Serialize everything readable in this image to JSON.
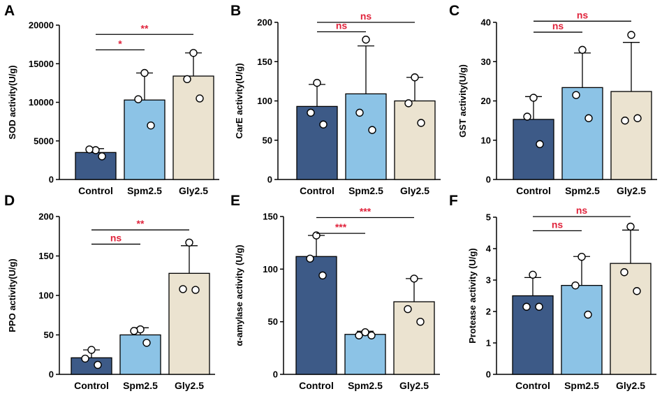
{
  "colors": {
    "bars": [
      "#3d5a87",
      "#8cc3e6",
      "#ebe3d0"
    ],
    "axis": "#000000",
    "significance": "#e0243c"
  },
  "chart_data": [
    {
      "panel": "A",
      "type": "bar",
      "categories": [
        "Control",
        "Spm2.5",
        "Gly2.5"
      ],
      "ylabel": "SOD activity(U/g)",
      "ylim": [
        0,
        20000
      ],
      "yticks": [
        0,
        5000,
        10000,
        15000,
        20000
      ],
      "values": [
        3500,
        10300,
        13400
      ],
      "sd": [
        500,
        3500,
        3000
      ],
      "points": [
        [
          3800,
          3900,
          3000
        ],
        [
          13800,
          10400,
          7000
        ],
        [
          16400,
          13000,
          10500
        ]
      ],
      "significance": [
        {
          "from": "Control",
          "to": "Spm2.5",
          "label": "*",
          "y": 16800
        },
        {
          "from": "Control",
          "to": "Gly2.5",
          "label": "**",
          "y": 18800
        }
      ]
    },
    {
      "panel": "B",
      "type": "bar",
      "categories": [
        "Control",
        "Spm2.5",
        "Gly2.5"
      ],
      "ylabel": "CarE activity(U/g)",
      "ylim": [
        0,
        200
      ],
      "yticks": [
        0,
        50,
        100,
        150,
        200
      ],
      "values": [
        93,
        109,
        100
      ],
      "sd": [
        28,
        61,
        30
      ],
      "points": [
        [
          123,
          85,
          70
        ],
        [
          178,
          85,
          63
        ],
        [
          130,
          97,
          72
        ]
      ],
      "significance": [
        {
          "from": "Control",
          "to": "Spm2.5",
          "label": "ns",
          "y": 188
        },
        {
          "from": "Control",
          "to": "Gly2.5",
          "label": "ns",
          "y": 200
        }
      ]
    },
    {
      "panel": "C",
      "type": "bar",
      "categories": [
        "Control",
        "Spm2.5",
        "Gly2.5"
      ],
      "ylabel": "GST activity(U/g)",
      "ylim": [
        0,
        40
      ],
      "yticks": [
        0,
        10,
        20,
        30,
        40
      ],
      "values": [
        15.3,
        23.4,
        22.4
      ],
      "sd": [
        5.8,
        8.8,
        12.5
      ],
      "points": [
        [
          20.8,
          16.0,
          9.0
        ],
        [
          33.0,
          21.5,
          15.6
        ],
        [
          36.8,
          15.0,
          15.6
        ]
      ],
      "significance": [
        {
          "from": "Control",
          "to": "Spm2.5",
          "label": "ns",
          "y": 37.5
        },
        {
          "from": "Control",
          "to": "Gly2.5",
          "label": "ns",
          "y": 40.3
        }
      ]
    },
    {
      "panel": "D",
      "type": "bar",
      "categories": [
        "Control",
        "Spm2.5",
        "Gly2.5"
      ],
      "ylabel": "PPO activity(U/g)",
      "ylim": [
        0,
        200
      ],
      "yticks": [
        0,
        50,
        100,
        150,
        200
      ],
      "values": [
        21,
        50,
        128
      ],
      "sd": [
        10,
        9,
        35
      ],
      "points": [
        [
          31,
          20,
          12
        ],
        [
          57,
          55,
          40
        ],
        [
          167,
          108,
          107
        ]
      ],
      "significance": [
        {
          "from": "Control",
          "to": "Spm2.5",
          "label": "ns",
          "y": 165
        },
        {
          "from": "Control",
          "to": "Gly2.5",
          "label": "**",
          "y": 183
        }
      ]
    },
    {
      "panel": "E",
      "type": "bar",
      "categories": [
        "Control",
        "Spm2.5",
        "Gly2.5"
      ],
      "ylabel": "α-amylase activity (U/g)",
      "ylim": [
        0,
        150
      ],
      "yticks": [
        0,
        50,
        100,
        150
      ],
      "values": [
        112,
        38,
        69
      ],
      "sd": [
        20,
        3,
        22
      ],
      "points": [
        [
          132,
          110,
          94
        ],
        [
          40,
          37,
          37
        ],
        [
          91,
          62,
          50
        ]
      ],
      "significance": [
        {
          "from": "Control",
          "to": "Spm2.5",
          "label": "***",
          "y": 134
        },
        {
          "from": "Control",
          "to": "Gly2.5",
          "label": "***",
          "y": 149
        }
      ]
    },
    {
      "panel": "F",
      "type": "bar",
      "categories": [
        "Control",
        "Spm2.5",
        "Gly2.5"
      ],
      "ylabel": "Protease activity (U/g)",
      "ylim": [
        0,
        5
      ],
      "yticks": [
        0,
        1,
        2,
        3,
        4,
        5
      ],
      "values": [
        2.5,
        2.83,
        3.53
      ],
      "sd": [
        0.58,
        0.92,
        1.06
      ],
      "points": [
        [
          3.17,
          2.15,
          2.15
        ],
        [
          3.74,
          2.83,
          1.9
        ],
        [
          4.7,
          3.25,
          2.65
        ]
      ],
      "significance": [
        {
          "from": "Control",
          "to": "Spm2.5",
          "label": "ns",
          "y": 4.57
        },
        {
          "from": "Control",
          "to": "Gly2.5",
          "label": "ns",
          "y": 5.02
        }
      ]
    }
  ]
}
